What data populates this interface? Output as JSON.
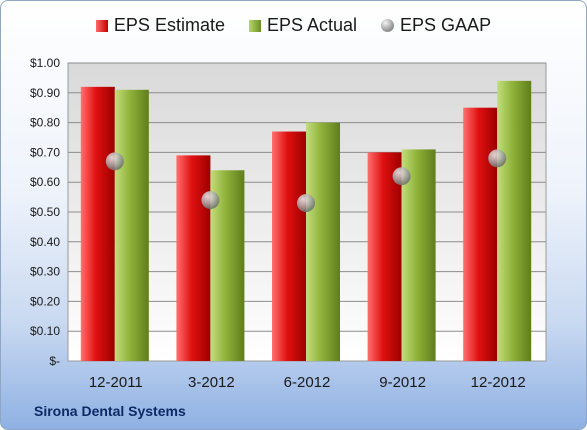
{
  "legend": {
    "estimate": "EPS Estimate",
    "actual": "EPS Actual",
    "gaap": "EPS GAAP"
  },
  "company": "Sirona Dental Systems",
  "colors": {
    "estimate": "#c40000",
    "actual": "#7fa22e",
    "gaap": "#9a9a9a"
  },
  "chart_data": {
    "type": "bar",
    "title": "",
    "xlabel": "",
    "ylabel": "",
    "categories": [
      "12-2011",
      "3-2012",
      "6-2012",
      "9-2012",
      "12-2012"
    ],
    "series": [
      {
        "name": "EPS Estimate",
        "values": [
          0.92,
          0.69,
          0.77,
          0.7,
          0.85
        ]
      },
      {
        "name": "EPS Actual",
        "values": [
          0.91,
          0.64,
          0.8,
          0.71,
          0.94
        ]
      },
      {
        "name": "EPS GAAP",
        "values": [
          0.67,
          0.54,
          0.53,
          0.62,
          0.68
        ],
        "marker": "circle"
      }
    ],
    "ylim": [
      0,
      1.0
    ],
    "y_ticks": [
      0,
      0.1,
      0.2,
      0.3,
      0.4,
      0.5,
      0.6,
      0.7,
      0.8,
      0.9,
      1.0
    ],
    "y_tick_labels": [
      "$-",
      "$0.10",
      "$0.20",
      "$0.30",
      "$0.40",
      "$0.50",
      "$0.60",
      "$0.70",
      "$0.80",
      "$0.90",
      "$1.00"
    ],
    "grid": true,
    "legend_position": "top"
  }
}
